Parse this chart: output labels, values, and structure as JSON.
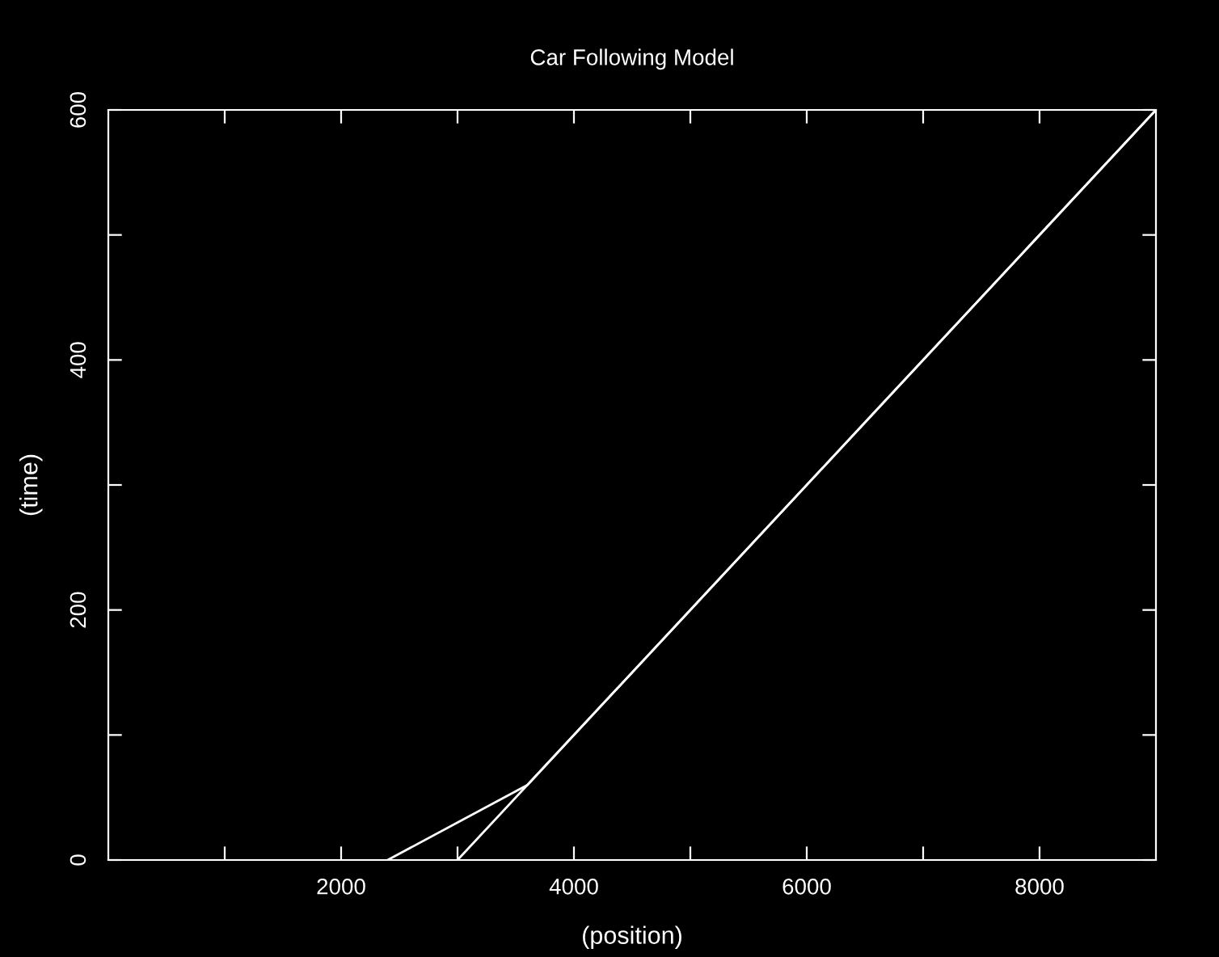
{
  "chart_data": {
    "type": "line",
    "title": "Car Following Model",
    "xlabel": "(position)",
    "ylabel": "(time)",
    "series": [
      {
        "x": [
          2400,
          3600,
          9000
        ],
        "values": [
          0,
          60,
          600
        ],
        "color": "#ffffff"
      },
      {
        "x": [
          3000,
          9000
        ],
        "values": [
          0,
          600
        ],
        "color": "#ffffff"
      }
    ],
    "xlim": [
      0,
      9000
    ],
    "ylim": [
      0,
      600
    ],
    "xticks": [
      {
        "value": 1000,
        "label": null
      },
      2000,
      {
        "value": 3000,
        "label": null
      },
      4000,
      {
        "value": 5000,
        "label": null
      },
      6000,
      {
        "value": 7000,
        "label": null
      },
      8000
    ],
    "yticks": [
      0,
      {
        "value": 100,
        "label": null
      },
      200,
      {
        "value": 300,
        "label": null
      },
      400,
      {
        "value": 500,
        "label": null
      },
      600
    ],
    "grid": false,
    "legend": false,
    "marker": "none",
    "line_style": "solid"
  }
}
